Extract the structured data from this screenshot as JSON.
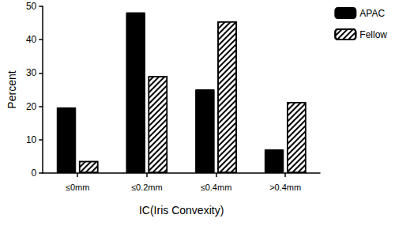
{
  "chart_data": {
    "type": "bar",
    "xlabel": "IC(Iris Convexity)",
    "ylabel": "Percent",
    "categories": [
      "≤0mm",
      "≤0.2mm",
      "≤0.4mm",
      ">0.4mm"
    ],
    "series": [
      {
        "name": "APAC",
        "color": "#000000",
        "marker": "solid",
        "values": [
          19.7,
          48.2,
          25.1,
          7.1
        ]
      },
      {
        "name": "Fellow",
        "color": "#000000",
        "marker": "hatch",
        "values": [
          3.6,
          29.1,
          45.5,
          21.3
        ]
      }
    ],
    "ylim": [
      0,
      50
    ],
    "yticks": [
      0,
      10,
      20,
      30,
      40,
      50
    ],
    "grid": false,
    "legend": "top-right"
  }
}
